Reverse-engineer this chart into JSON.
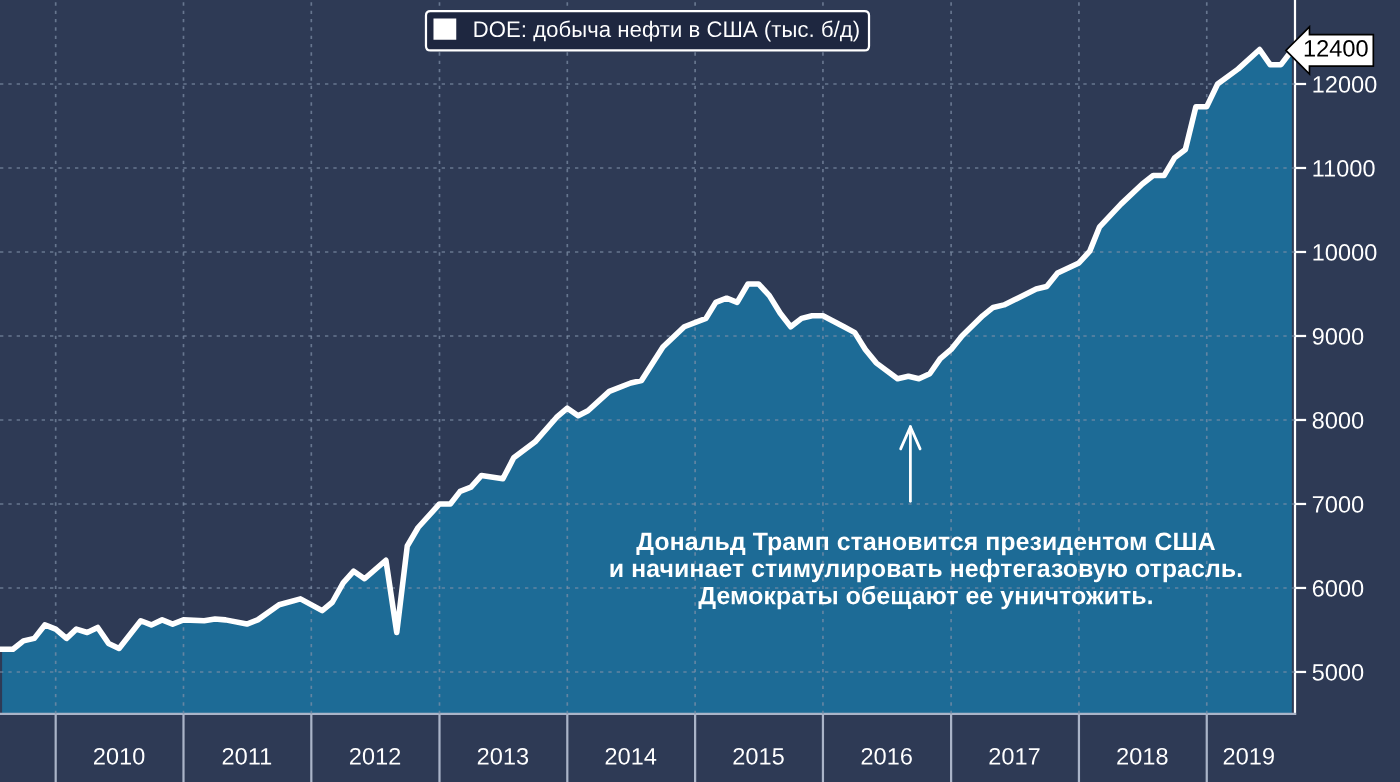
{
  "chart_data": {
    "type": "area",
    "x": [
      "2009-08",
      "2009-09",
      "2009-10",
      "2009-11",
      "2009-12",
      "2010-01",
      "2010-02",
      "2010-03",
      "2010-04",
      "2010-05",
      "2010-06",
      "2010-07",
      "2010-09",
      "2010-10",
      "2010-11",
      "2010-12",
      "2011-01",
      "2011-03",
      "2011-04",
      "2011-05",
      "2011-07",
      "2011-08",
      "2011-10",
      "2011-12",
      "2012-02",
      "2012-03",
      "2012-04",
      "2012-05",
      "2012-06",
      "2012-08",
      "2012-09",
      "2012-10",
      "2012-11",
      "2013-01",
      "2013-02",
      "2013-03",
      "2013-04",
      "2013-05",
      "2013-07",
      "2013-08",
      "2013-10",
      "2013-12",
      "2014-01",
      "2014-02",
      "2014-03",
      "2014-05",
      "2014-07",
      "2014-08",
      "2014-10",
      "2014-12",
      "2015-02",
      "2015-03",
      "2015-04",
      "2015-05",
      "2015-06",
      "2015-07",
      "2015-08",
      "2015-09",
      "2015-10",
      "2015-11",
      "2015-12",
      "2016-01",
      "2016-03",
      "2016-04",
      "2016-05",
      "2016-06",
      "2016-08",
      "2016-09",
      "2016-10",
      "2016-11",
      "2016-12",
      "2017-01",
      "2017-02",
      "2017-04",
      "2017-05",
      "2017-06",
      "2017-07",
      "2017-09",
      "2017-10",
      "2017-11",
      "2018-01",
      "2018-02",
      "2018-03",
      "2018-05",
      "2018-07",
      "2018-08",
      "2018-09",
      "2018-10",
      "2018-11",
      "2018-12",
      "2019-01",
      "2019-02",
      "2019-04",
      "2019-06",
      "2019-07",
      "2019-08",
      "2019-09"
    ],
    "series": [
      {
        "name": "DOE: добыча нефти в США (тыс. б/д)",
        "color": "#ffffff",
        "values": [
          5270,
          5270,
          5370,
          5400,
          5560,
          5510,
          5400,
          5510,
          5470,
          5530,
          5340,
          5280,
          5610,
          5560,
          5620,
          5570,
          5620,
          5610,
          5630,
          5620,
          5570,
          5620,
          5800,
          5870,
          5730,
          5830,
          6060,
          6200,
          6110,
          6330,
          5470,
          6500,
          6720,
          7000,
          7000,
          7150,
          7200,
          7340,
          7300,
          7550,
          7740,
          8030,
          8140,
          8050,
          8110,
          8340,
          8440,
          8470,
          8870,
          9110,
          9210,
          9400,
          9450,
          9400,
          9620,
          9620,
          9480,
          9270,
          9110,
          9210,
          9240,
          9240,
          9110,
          9040,
          8840,
          8680,
          8490,
          8520,
          8490,
          8550,
          8730,
          8840,
          9000,
          9240,
          9340,
          9370,
          9430,
          9560,
          9590,
          9750,
          9870,
          10010,
          10300,
          10570,
          10810,
          10910,
          10910,
          11120,
          11220,
          11730,
          11730,
          12000,
          12180,
          12410,
          12230,
          12230,
          12400
        ]
      }
    ],
    "xlim": [
      "2009-07-26",
      "2019-09-10"
    ],
    "xticks": [
      {
        "value": "2010-01-01",
        "label": null
      },
      {
        "value": "2010-07-01",
        "label": "2010"
      },
      {
        "value": "2011-01-01",
        "label": null
      },
      {
        "value": "2011-07-01",
        "label": "2011"
      },
      {
        "value": "2012-01-01",
        "label": null
      },
      {
        "value": "2012-07-01",
        "label": "2012"
      },
      {
        "value": "2013-01-01",
        "label": null
      },
      {
        "value": "2013-07-01",
        "label": "2013"
      },
      {
        "value": "2014-01-01",
        "label": null
      },
      {
        "value": "2014-07-01",
        "label": "2014"
      },
      {
        "value": "2015-01-01",
        "label": null
      },
      {
        "value": "2015-07-01",
        "label": "2015"
      },
      {
        "value": "2016-01-01",
        "label": null
      },
      {
        "value": "2016-07-01",
        "label": "2016"
      },
      {
        "value": "2017-01-01",
        "label": null
      },
      {
        "value": "2017-07-01",
        "label": "2017"
      },
      {
        "value": "2018-01-01",
        "label": null
      },
      {
        "value": "2018-07-01",
        "label": "2018"
      },
      {
        "value": "2019-01-01",
        "label": null
      },
      {
        "value": "2019-05-01",
        "label": "2019"
      }
    ],
    "ylim": [
      4500,
      13000
    ],
    "yticks": [
      5000,
      6000,
      7000,
      8000,
      9000,
      10000,
      11000,
      12000
    ],
    "grid": true,
    "legend": "top",
    "annotations": [
      {
        "text": "12400",
        "x": "2019-09",
        "y": 12400
      },
      "Дональд Трамп становится президентом США\nи начинает стимулировать нефтегазовую отрасль.\nДемократы обещают ее уничтожить."
    ]
  }
}
